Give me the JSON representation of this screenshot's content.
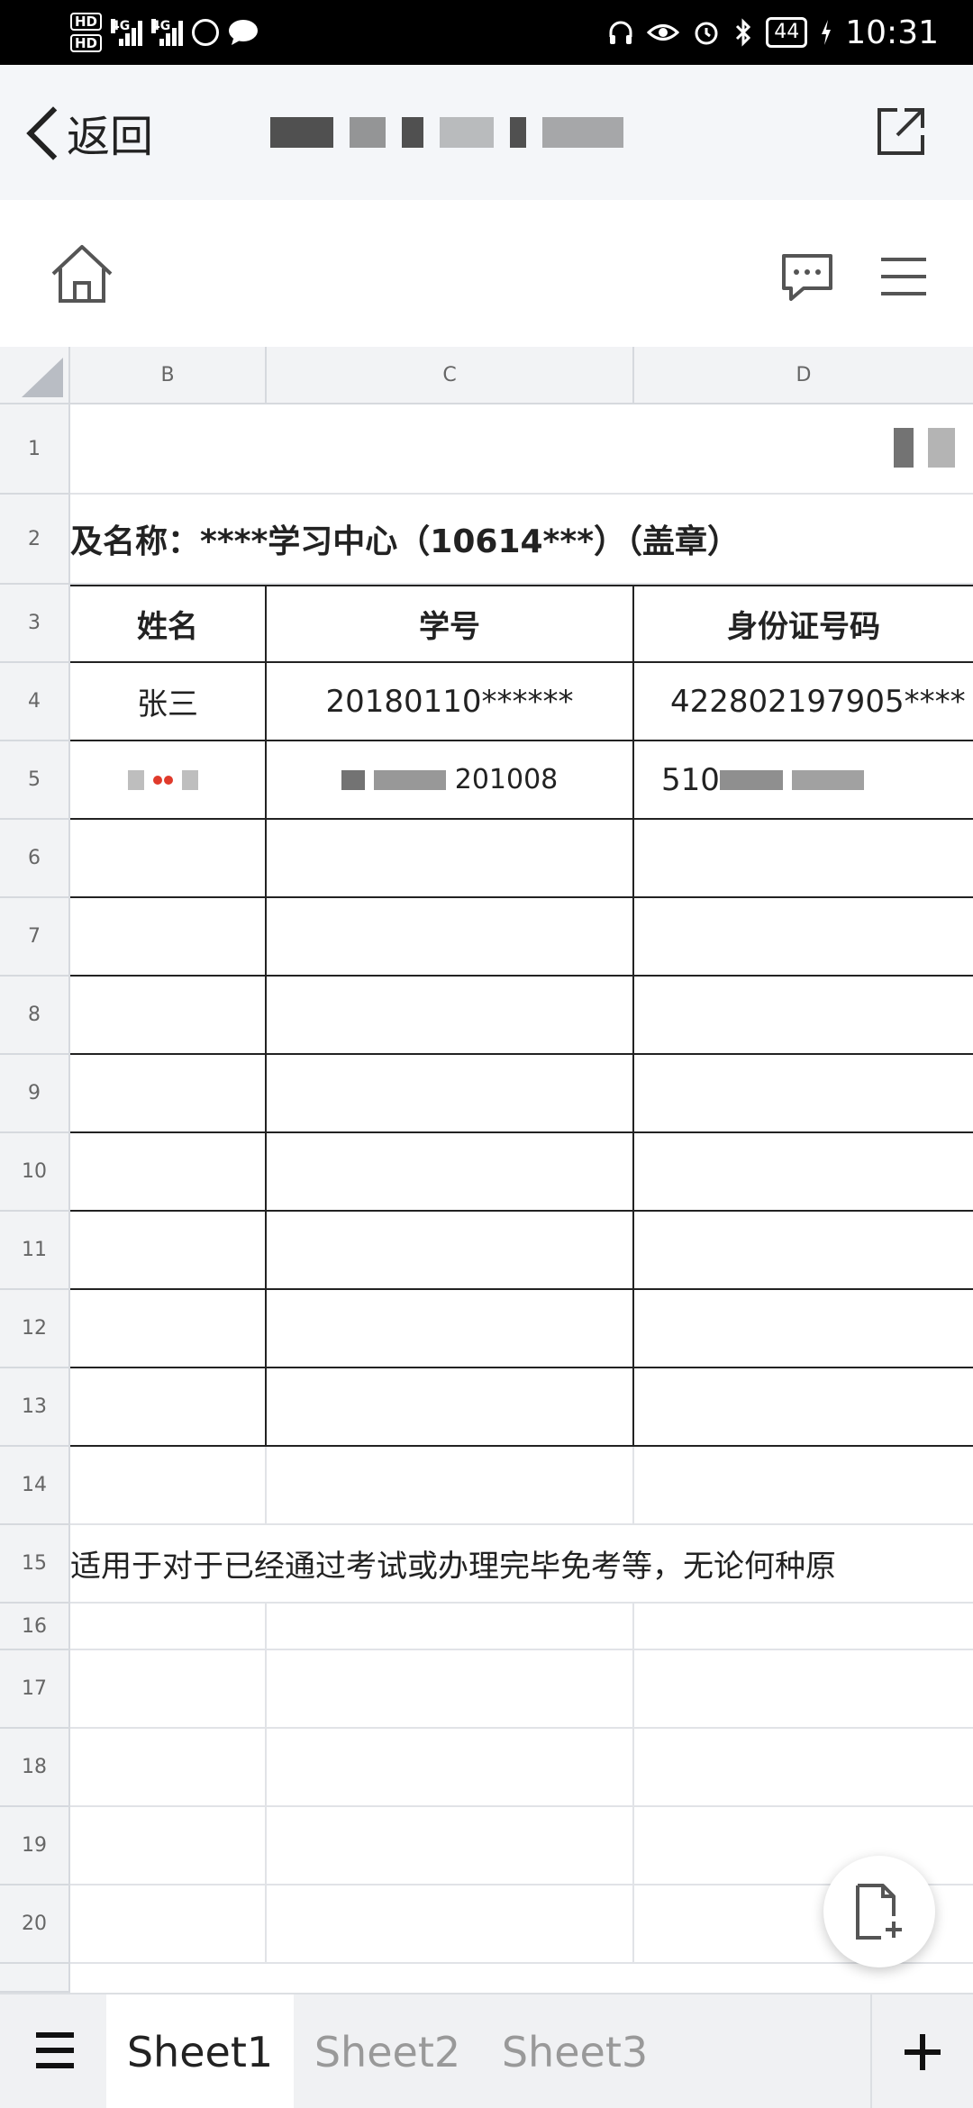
{
  "status_bar": {
    "hd1": "HD",
    "hd2": "HD",
    "net1": "4G",
    "net2": "4G",
    "battery": "44",
    "time": "10:31"
  },
  "nav": {
    "back_label": "返回"
  },
  "sheet": {
    "columns": [
      "B",
      "C",
      "D"
    ],
    "rows": [
      "1",
      "2",
      "3",
      "4",
      "5",
      "6",
      "7",
      "8",
      "9",
      "10",
      "11",
      "12",
      "13",
      "14",
      "15",
      "16",
      "17",
      "18",
      "19",
      "20"
    ],
    "row2_text": "及名称：****学习中心（10614***）（盖章）",
    "headers": [
      "姓名",
      "学号",
      "身份证号码"
    ],
    "row4": [
      "张三",
      "20180110******",
      "422802197905****"
    ],
    "row5": [
      "",
      "201008",
      "510"
    ],
    "row15_text": "适用于对于已经通过考试或办理完毕免考等，无论何种原"
  },
  "tabs": {
    "items": [
      "Sheet1",
      "Sheet2",
      "Sheet3"
    ]
  }
}
